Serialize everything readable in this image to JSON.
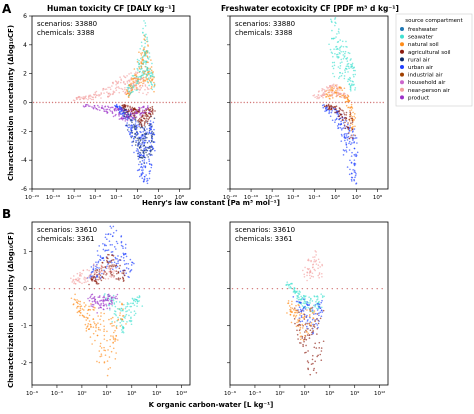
{
  "panel_letters": [
    "A",
    "B"
  ],
  "legend": {
    "title": "source compartment",
    "items": [
      {
        "label": "freshwater",
        "color": "#1f77b4"
      },
      {
        "label": "seawater",
        "color": "#40e0d0"
      },
      {
        "label": "natural soil",
        "color": "#ff8c1a"
      },
      {
        "label": "agricultural soil",
        "color": "#8b1a0e"
      },
      {
        "label": "rural air",
        "color": "#0d2b6b"
      },
      {
        "label": "urban air",
        "color": "#1f3fff"
      },
      {
        "label": "industrial air",
        "color": "#a04000"
      },
      {
        "label": "household air",
        "color": "#cc66cc"
      },
      {
        "label": "near-person air",
        "color": "#f2a0a0"
      },
      {
        "label": "product",
        "color": "#9b30c8"
      }
    ]
  },
  "ylabel": "Characterization uncertainty (Δlog₁₀CF)",
  "chart_data": [
    {
      "panel": "A-left",
      "type": "scatter",
      "title": "Human toxicity CF [DALY kg⁻¹]",
      "annotation": [
        "scenarios: 33880",
        "chemicals: 3388"
      ],
      "x_scale": "log10",
      "xlim_log10": [
        -20,
        10
      ],
      "x_ticks": [
        "10⁻²⁰",
        "10⁻¹⁶",
        "10⁻¹²",
        "10⁻⁸",
        "10⁻⁴",
        "10⁰",
        "10⁴",
        "10⁸"
      ],
      "ylim": [
        -6,
        6
      ],
      "y_ticks": [
        "-6",
        "-4",
        "-2",
        "0",
        "2",
        "4",
        "6"
      ],
      "baseline_y": 0,
      "series": [
        {
          "label": "urban air",
          "points": [
            [
              -4,
              -0.3
            ],
            [
              -3,
              -0.8
            ],
            [
              -2,
              -1.5
            ],
            [
              -1,
              -2.5
            ],
            [
              0,
              -3.5
            ],
            [
              0.5,
              -4.4
            ],
            [
              1,
              -5
            ],
            [
              1.5,
              -5.3
            ],
            [
              2,
              -4.8
            ],
            [
              2.5,
              -4
            ],
            [
              3,
              -3.2
            ]
          ]
        },
        {
          "label": "rural air",
          "points": [
            [
              -3,
              -0.5
            ],
            [
              -1,
              -2.2
            ],
            [
              0,
              -3.2
            ],
            [
              1,
              -4
            ],
            [
              2,
              -3.6
            ],
            [
              3,
              -2.6
            ]
          ]
        },
        {
          "label": "natural soil",
          "points": [
            [
              -2,
              0.8
            ],
            [
              -1,
              1.5
            ],
            [
              0,
              2.5
            ],
            [
              1,
              3.5
            ],
            [
              1.5,
              4.5
            ],
            [
              2,
              3.8
            ],
            [
              3,
              1.8
            ]
          ]
        },
        {
          "label": "agricultural soil",
          "points": [
            [
              -3,
              -0.3
            ],
            [
              -1,
              -0.8
            ],
            [
              0,
              -1.2
            ],
            [
              1,
              -1.6
            ],
            [
              2,
              -1.2
            ],
            [
              3,
              -0.6
            ]
          ]
        },
        {
          "label": "seawater",
          "points": [
            [
              -2,
              1
            ],
            [
              0,
              2.2
            ],
            [
              1,
              4.5
            ],
            [
              1.5,
              5.2
            ],
            [
              2,
              3.5
            ],
            [
              3,
              2
            ]
          ]
        },
        {
          "label": "near-person air",
          "points": [
            [
              -12,
              0.3
            ],
            [
              -9,
              0.5
            ],
            [
              -6,
              1
            ],
            [
              -4,
              1.5
            ],
            [
              -2,
              1.8
            ],
            [
              0,
              2
            ],
            [
              2,
              1
            ]
          ]
        },
        {
          "label": "product",
          "points": [
            [
              -10,
              -0.3
            ],
            [
              -6,
              -0.6
            ],
            [
              -4,
              -1
            ],
            [
              -2,
              -1.2
            ],
            [
              0,
              -1
            ],
            [
              2,
              -0.6
            ]
          ]
        }
      ]
    },
    {
      "panel": "A-right",
      "type": "scatter",
      "title": "Freshwater ecotoxicity CF [PDF m³ d kg⁻¹]",
      "annotation": [
        "scenarios: 33880",
        "chemicals: 3388"
      ],
      "x_scale": "log10",
      "xlim_log10": [
        -20,
        10
      ],
      "x_ticks": [
        "10⁻²⁰",
        "10⁻¹⁶",
        "10⁻¹²",
        "10⁻⁸",
        "10⁻⁴",
        "10⁰",
        "10⁴",
        "10⁸"
      ],
      "ylim": [
        -6,
        6
      ],
      "series": [
        {
          "label": "seawater",
          "points": [
            [
              -1,
              5.8
            ],
            [
              0,
              5.3
            ],
            [
              1,
              4.6
            ],
            [
              2,
              3.8
            ],
            [
              3,
              2.5
            ],
            [
              3.5,
              2
            ]
          ]
        },
        {
          "label": "urban air",
          "points": [
            [
              -2,
              -0.4
            ],
            [
              0,
              -1.2
            ],
            [
              1,
              -2.2
            ],
            [
              2,
              -3.4
            ],
            [
              3,
              -4.6
            ],
            [
              3.5,
              -5.2
            ],
            [
              4,
              -5.4
            ]
          ]
        },
        {
          "label": "natural soil",
          "points": [
            [
              -2,
              0.5
            ],
            [
              0,
              1.2
            ],
            [
              2,
              0.8
            ],
            [
              3,
              -1
            ],
            [
              3.5,
              -2.5
            ]
          ]
        },
        {
          "label": "agricultural soil",
          "points": [
            [
              -2,
              -0.3
            ],
            [
              0,
              -0.6
            ],
            [
              2,
              -1.6
            ],
            [
              3,
              -2.4
            ]
          ]
        },
        {
          "label": "near-person air",
          "points": [
            [
              -4,
              0.5
            ],
            [
              -2,
              1
            ],
            [
              0,
              1.2
            ],
            [
              2,
              0.5
            ]
          ]
        }
      ]
    },
    {
      "panel": "B-left",
      "type": "scatter",
      "annotation": [
        "scenarios: 33610",
        "chemicals: 3361"
      ],
      "x_scale": "log10",
      "xlim_log10": [
        -6,
        13
      ],
      "x_ticks": [
        "10⁻⁶",
        "10⁻³",
        "10⁰",
        "10³",
        "10⁶",
        "10⁹",
        "10¹²"
      ],
      "ylim": [
        -2.6,
        1.8
      ],
      "y_ticks": [
        "-2",
        "-1",
        "0",
        "1"
      ],
      "baseline_y": 0,
      "series": [
        {
          "label": "natural soil",
          "points": [
            [
              -1,
              -0.4
            ],
            [
              0,
              -0.8
            ],
            [
              1,
              -1.2
            ],
            [
              2,
              -1.8
            ],
            [
              3,
              -2.2
            ],
            [
              4,
              -1.6
            ],
            [
              5,
              -0.8
            ]
          ]
        },
        {
          "label": "urban air",
          "points": [
            [
              1,
              0.4
            ],
            [
              2,
              0.8
            ],
            [
              3,
              1.3
            ],
            [
              4,
              1.7
            ],
            [
              5,
              1.2
            ],
            [
              6,
              0.6
            ]
          ]
        },
        {
          "label": "agricultural soil",
          "points": [
            [
              1,
              0.2
            ],
            [
              2,
              0.5
            ],
            [
              3,
              0.9
            ],
            [
              4,
              0.8
            ],
            [
              5,
              0.4
            ]
          ]
        },
        {
          "label": "seawater",
          "points": [
            [
              3,
              -0.3
            ],
            [
              4,
              -0.8
            ],
            [
              5,
              -1.2
            ],
            [
              6,
              -0.8
            ],
            [
              7,
              -0.4
            ]
          ]
        },
        {
          "label": "product",
          "points": [
            [
              1,
              -0.3
            ],
            [
              2,
              -0.6
            ],
            [
              3,
              -0.5
            ],
            [
              4,
              -0.3
            ]
          ]
        },
        {
          "label": "near-person air",
          "points": [
            [
              -1,
              0.3
            ],
            [
              0,
              0.4
            ],
            [
              2,
              0.7
            ],
            [
              4,
              0.5
            ]
          ]
        }
      ]
    },
    {
      "panel": "B-right",
      "type": "scatter",
      "annotation": [
        "scenarios: 33610",
        "chemicals: 3361"
      ],
      "x_scale": "log10",
      "xlim_log10": [
        -6,
        13
      ],
      "x_ticks": [
        "10⁻⁶",
        "10⁻³",
        "10⁰",
        "10³",
        "10⁶",
        "10⁹",
        "10¹²"
      ],
      "ylim": [
        -2.6,
        1.8
      ],
      "series": [
        {
          "label": "seawater",
          "points": [
            [
              1,
              0.2
            ],
            [
              2,
              -0.2
            ],
            [
              3,
              -0.5
            ],
            [
              4,
              -0.6
            ],
            [
              5,
              -0.4
            ]
          ]
        },
        {
          "label": "agricultural soil",
          "points": [
            [
              2,
              -1.2
            ],
            [
              3,
              -1.8
            ],
            [
              4,
              -2.2
            ],
            [
              5,
              -1.6
            ]
          ]
        },
        {
          "label": "urban air",
          "points": [
            [
              2,
              -0.6
            ],
            [
              3,
              -1
            ],
            [
              4,
              -1.2
            ],
            [
              5,
              -0.6
            ]
          ]
        },
        {
          "label": "natural soil",
          "points": [
            [
              1,
              -0.6
            ],
            [
              2,
              -1
            ],
            [
              3,
              -1.4
            ],
            [
              4,
              -0.8
            ]
          ]
        },
        {
          "label": "near-person air",
          "points": [
            [
              3,
              0.4
            ],
            [
              4,
              1
            ],
            [
              5,
              0.6
            ]
          ]
        }
      ]
    }
  ],
  "xlabel_A": "Henry's law constant [Pa m³ mol⁻¹]",
  "xlabel_B": "K organic carbon-water [L kg⁻¹]"
}
